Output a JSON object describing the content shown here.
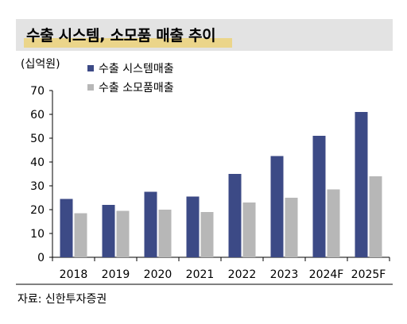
{
  "title": "수출 시스템, 소모품 매출 추이",
  "unit": "(십억원)",
  "source": "자료: 신한투자증권",
  "colors": {
    "system": "#3c4a86",
    "consumables": "#b7b7b7",
    "highlight": "#ebd58a",
    "title_bg": "#e3e3e3"
  },
  "chart_data": {
    "type": "bar",
    "categories": [
      "2018",
      "2019",
      "2020",
      "2021",
      "2022",
      "2023",
      "2024F",
      "2025F"
    ],
    "series": [
      {
        "name": "수출 시스템매출",
        "values": [
          24.5,
          22,
          27.5,
          25.5,
          35,
          42.5,
          51,
          61
        ]
      },
      {
        "name": "수출 소모품매출",
        "values": [
          18.5,
          19.5,
          20,
          19,
          23,
          25,
          28.5,
          34
        ]
      }
    ],
    "yticks": [
      0,
      10,
      20,
      30,
      40,
      50,
      60,
      70
    ],
    "ylim": [
      0,
      70
    ],
    "grid": false,
    "legend_position": "top-left"
  }
}
